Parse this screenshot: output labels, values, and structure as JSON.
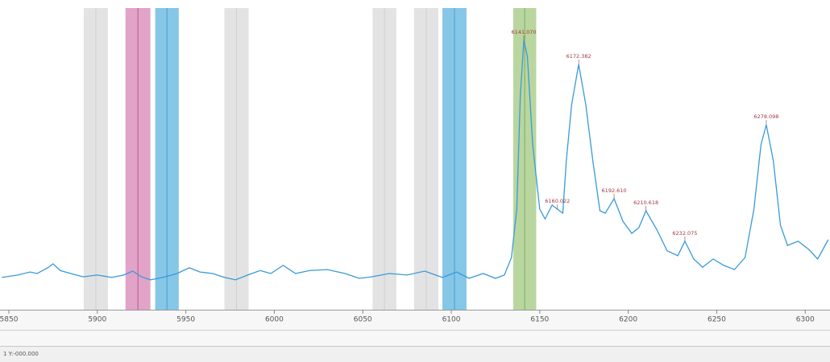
{
  "chart_data": {
    "type": "line",
    "xlim": [
      5845,
      6314
    ],
    "ylim": [
      0,
      100
    ],
    "xticks": [
      5850,
      5900,
      5950,
      6000,
      6050,
      6100,
      6150,
      6200,
      6250,
      6300
    ],
    "bands": [
      {
        "x": [
          5892.3,
          5906
        ],
        "color": "#e3e3e3",
        "line": "#cfcfcf"
      },
      {
        "x": [
          5915.9,
          5930
        ],
        "color": "#e2a3c9",
        "line": "#b65b8c"
      },
      {
        "x": [
          5932.7,
          5946
        ],
        "color": "#86c6e7",
        "line": "#4aa0d2"
      },
      {
        "x": [
          5971.8,
          5985.5
        ],
        "color": "#e3e3e3",
        "line": "#cfcfcf"
      },
      {
        "x": [
          6055.5,
          6069
        ],
        "color": "#e3e3e3",
        "line": "#cfcfcf"
      },
      {
        "x": [
          6079,
          6092.7
        ],
        "color": "#e3e3e3",
        "line": "#cfcfcf"
      },
      {
        "x": [
          6095,
          6108.6
        ],
        "color": "#86c6e7",
        "line": "#4aa0d2"
      },
      {
        "x": [
          6135,
          6148
        ],
        "color": "#b9d69f",
        "line": "#82a963"
      }
    ],
    "series": [
      {
        "color": "#3a9ad9",
        "x": [
          5846,
          5855,
          5862,
          5866,
          5872,
          5875,
          5879,
          5885,
          5892,
          5900,
          5908,
          5915,
          5920,
          5925,
          5930,
          5937,
          5945,
          5952,
          5958,
          5965,
          5972,
          5978,
          5985,
          5992,
          5998,
          6005,
          6012,
          6020,
          6030,
          6040,
          6048,
          6055,
          6065,
          6075,
          6085,
          6095,
          6103,
          6110,
          6118,
          6125,
          6130,
          6134,
          6137,
          6139,
          6141,
          6143,
          6146,
          6150,
          6153,
          6157,
          6160,
          6163,
          6165,
          6168,
          6172,
          6176,
          6180,
          6184,
          6187,
          6192,
          6197,
          6202,
          6206,
          6210,
          6216,
          6222,
          6228,
          6232,
          6237,
          6242,
          6248,
          6254,
          6260,
          6266,
          6271,
          6275,
          6278,
          6282,
          6286,
          6290,
          6296,
          6302,
          6307,
          6313
        ],
        "values": [
          10.7,
          11.5,
          12.5,
          12,
          13.9,
          15.2,
          13,
          12,
          10.9,
          11.5,
          10.7,
          11.5,
          12.8,
          10.9,
          9.9,
          10.7,
          12,
          13.9,
          12.5,
          12,
          10.7,
          9.9,
          11.5,
          13,
          12,
          14.7,
          12,
          13,
          13.3,
          12,
          10.4,
          10.9,
          12,
          11.5,
          12.8,
          10.7,
          12.5,
          10.4,
          12,
          10.4,
          11.5,
          17.3,
          33.3,
          70.7,
          89.3,
          84,
          54.7,
          33.3,
          30.1,
          34.7,
          33.3,
          32,
          49.3,
          68,
          81.3,
          68,
          49.3,
          32.8,
          32,
          36.8,
          29.3,
          25.3,
          27.2,
          32.8,
          26.7,
          19.5,
          17.9,
          22.7,
          16.8,
          14.1,
          16.8,
          14.7,
          13.3,
          17.3,
          33.3,
          54.7,
          61.3,
          49.3,
          28,
          21.3,
          22.7,
          20,
          16.8,
          23.2
        ],
        "value_labels": [
          null,
          null,
          null,
          null,
          null,
          null,
          null,
          null,
          null,
          null,
          null,
          null,
          null,
          null,
          null,
          null,
          null,
          null,
          null,
          null,
          null,
          null,
          null,
          null,
          null,
          null,
          null,
          null,
          null,
          null,
          null,
          null,
          null,
          null,
          null,
          null,
          null,
          null,
          null,
          null,
          null,
          null,
          null,
          null,
          "6141.070",
          null,
          null,
          null,
          null,
          null,
          "6160.022",
          null,
          null,
          null,
          "6172.382",
          null,
          null,
          null,
          null,
          "6192.610",
          null,
          null,
          null,
          "6210.618",
          null,
          null,
          null,
          "6232.075",
          null,
          null,
          null,
          null,
          null,
          null,
          null,
          null,
          "6278.098",
          null,
          null,
          null,
          null,
          null,
          null,
          null
        ]
      }
    ],
    "status": "1  Y:-000.000"
  }
}
